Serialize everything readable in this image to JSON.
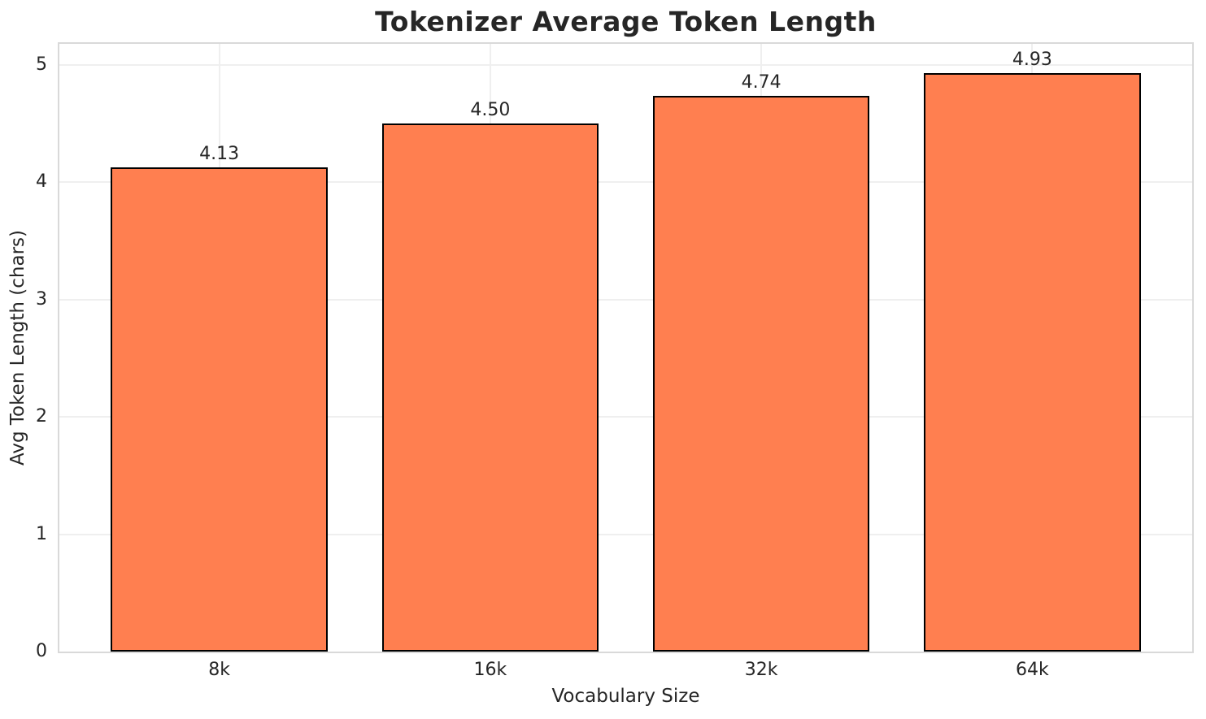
{
  "chart_data": {
    "type": "bar",
    "title": "Tokenizer Average Token Length",
    "xlabel": "Vocabulary Size",
    "ylabel": "Avg Token Length (chars)",
    "categories": [
      "8k",
      "16k",
      "32k",
      "64k"
    ],
    "values": [
      4.13,
      4.5,
      4.74,
      4.93
    ],
    "value_labels": [
      "4.13",
      "4.50",
      "4.74",
      "4.93"
    ],
    "y_ticks": [
      "0",
      "1",
      "2",
      "3",
      "4",
      "5"
    ],
    "ylim": [
      0,
      5.18
    ],
    "grid": true,
    "legend": false,
    "colors": {
      "bar_fill": "#FF7F50",
      "bar_edge": "#000000",
      "gridline": "#EFEFEF",
      "spine": "#D9D9D9",
      "text": "#262626"
    }
  }
}
